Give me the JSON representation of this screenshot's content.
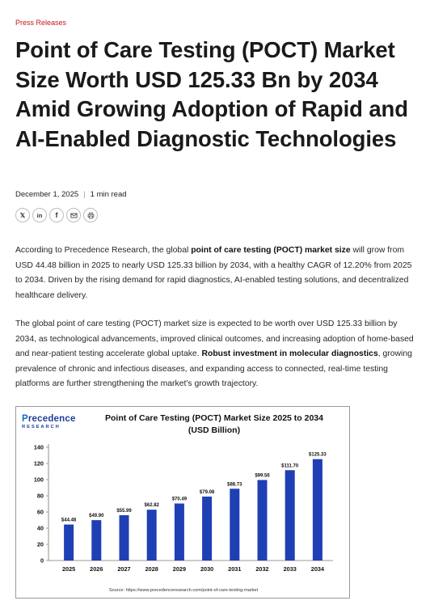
{
  "category": "Press Releases",
  "headline": "Point of Care Testing (POCT) Market Size Worth USD 125.33 Bn by 2034 Amid Growing Adoption of Rapid and AI-Enabled Diagnostic Technologies",
  "meta": {
    "date": "December 1, 2025",
    "read_time": "1 min read"
  },
  "share_buttons": [
    {
      "icon": "x-icon",
      "glyph": "𝕏"
    },
    {
      "icon": "linkedin-icon",
      "glyph": "in"
    },
    {
      "icon": "facebook-icon",
      "glyph": "f"
    },
    {
      "icon": "email-icon",
      "glyph": ""
    },
    {
      "icon": "print-icon",
      "glyph": ""
    }
  ],
  "paragraph1": {
    "before": "According to Precedence Research, the global ",
    "bold": "point of care testing (POCT) market size",
    "after": " will grow from USD 44.48 billion in 2025 to nearly USD 125.33 billion by 2034, with a healthy CAGR of 12.20% from 2025 to 2034. Driven by the rising demand for rapid diagnostics, AI-enabled testing solutions, and decentralized healthcare delivery."
  },
  "paragraph2": {
    "before": "The global point of care testing (POCT) market size is expected to be worth over USD 125.33 billion by 2034, as technological advancements, improved clinical outcomes, and increasing adoption of home-based and near-patient testing accelerate global uptake. ",
    "bold": "Robust investment in molecular diagnostics",
    "after": ", growing prevalence of chronic and infectious diseases, and expanding access to connected, real-time testing platforms are further strengthening the market's growth trajectory."
  },
  "chart_logo": {
    "brand_p": "P",
    "brand_rest": "recedence",
    "sub": "RESEARCH"
  },
  "chart_data": {
    "type": "bar",
    "title": "Point of Care Testing (POCT) Market Size 2025 to 2034",
    "subtitle": "(USD Billion)",
    "categories": [
      "2025",
      "2026",
      "2027",
      "2028",
      "2029",
      "2030",
      "2031",
      "2032",
      "2033",
      "2034"
    ],
    "values": [
      44.48,
      49.9,
      55.99,
      62.82,
      70.49,
      79.08,
      88.73,
      99.56,
      111.7,
      125.33
    ],
    "data_labels": [
      "$44.48",
      "$49.90",
      "$55.99",
      "$62.82",
      "$70.49",
      "$79.08",
      "$88.73",
      "$99.56",
      "$111.70",
      "$125.33"
    ],
    "ylim": [
      0,
      140
    ],
    "yticks": [
      0,
      20,
      40,
      60,
      80,
      100,
      120,
      140
    ],
    "grid": false,
    "bar_color": "#1f3fb5",
    "source": "Source: https://www.precedenceresearch.com/point-of-care-testing-market"
  }
}
